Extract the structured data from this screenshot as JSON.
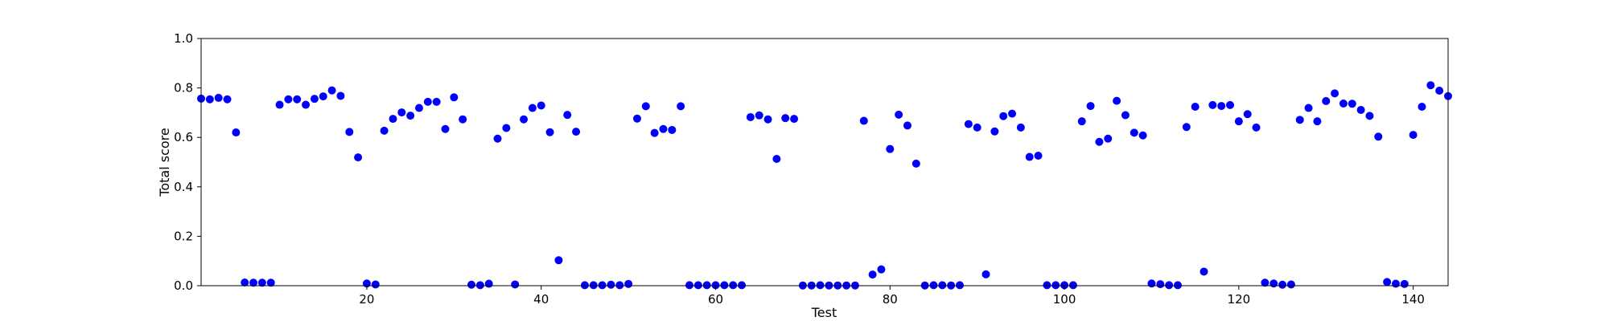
{
  "chart_data": {
    "type": "scatter",
    "title": "",
    "xlabel": "Test",
    "ylabel": "Total score",
    "xlim": [
      1,
      144
    ],
    "ylim": [
      0.0,
      1.0
    ],
    "x_ticks": [
      20,
      40,
      60,
      80,
      100,
      120,
      140
    ],
    "y_ticks": [
      0.0,
      0.2,
      0.4,
      0.6,
      0.8,
      1.0
    ],
    "x_tick_labels": [
      "20",
      "40",
      "60",
      "80",
      "100",
      "120",
      "140"
    ],
    "y_tick_labels": [
      "0.0",
      "0.2",
      "0.4",
      "0.6",
      "0.8",
      "1.0"
    ],
    "grid": false,
    "legend": "none",
    "marker_color": "#0000ff",
    "series": [
      {
        "x": [
          1,
          2,
          3,
          4,
          5,
          6,
          7,
          8,
          9,
          10,
          11,
          12,
          13,
          14,
          15,
          16,
          17,
          18,
          19,
          20,
          21,
          22,
          23,
          24,
          25,
          26,
          27,
          28,
          29,
          30,
          31,
          32,
          33,
          34,
          35,
          36,
          37,
          38,
          39,
          40,
          41,
          42,
          43,
          44,
          45,
          46,
          47,
          48,
          49,
          50,
          51,
          52,
          53,
          54,
          55,
          56,
          57,
          58,
          59,
          60,
          61,
          62,
          63,
          64,
          65,
          66,
          67,
          68,
          69,
          70,
          71,
          72,
          73,
          74,
          75,
          76,
          77,
          78,
          79,
          80,
          81,
          82,
          83,
          84,
          85,
          86,
          87,
          88,
          89,
          90,
          91,
          92,
          93,
          94,
          95,
          96,
          97,
          98,
          99,
          100,
          101,
          102,
          103,
          104,
          105,
          106,
          107,
          108,
          109,
          110,
          111,
          112,
          113,
          114,
          115,
          116,
          117,
          118,
          119,
          120,
          121,
          122,
          123,
          124,
          125,
          126,
          127,
          128,
          129,
          130,
          131,
          132,
          133,
          134,
          135,
          136,
          137,
          138,
          139,
          140,
          141,
          142,
          143,
          144
        ],
        "y": [
          0.757,
          0.754,
          0.76,
          0.754,
          0.62,
          0.013,
          0.012,
          0.012,
          0.012,
          0.732,
          0.754,
          0.754,
          0.732,
          0.756,
          0.766,
          0.79,
          0.768,
          0.622,
          0.519,
          0.009,
          0.005,
          0.627,
          0.675,
          0.701,
          0.688,
          0.719,
          0.744,
          0.744,
          0.634,
          0.762,
          0.673,
          0.004,
          0.002,
          0.008,
          0.595,
          0.638,
          0.005,
          0.673,
          0.719,
          0.729,
          0.621,
          0.103,
          0.691,
          0.623,
          0.002,
          0.002,
          0.002,
          0.004,
          0.002,
          0.007,
          0.676,
          0.726,
          0.618,
          0.634,
          0.63,
          0.726,
          0.002,
          0.002,
          0.002,
          0.002,
          0.002,
          0.002,
          0.002,
          0.682,
          0.689,
          0.673,
          0.513,
          0.678,
          0.675,
          0.001,
          0.001,
          0.002,
          0.001,
          0.001,
          0.001,
          0.001,
          0.667,
          0.045,
          0.066,
          0.553,
          0.692,
          0.648,
          0.494,
          0.001,
          0.002,
          0.002,
          0.001,
          0.002,
          0.654,
          0.64,
          0.046,
          0.624,
          0.686,
          0.696,
          0.64,
          0.521,
          0.526,
          0.002,
          0.002,
          0.002,
          0.002,
          0.665,
          0.727,
          0.582,
          0.595,
          0.748,
          0.69,
          0.619,
          0.608,
          0.009,
          0.006,
          0.002,
          0.002,
          0.642,
          0.724,
          0.057,
          0.731,
          0.727,
          0.731,
          0.665,
          0.694,
          0.64,
          0.012,
          0.009,
          0.004,
          0.005,
          0.671,
          0.719,
          0.665,
          0.747,
          0.778,
          0.737,
          0.736,
          0.711,
          0.687,
          0.603,
          0.015,
          0.008,
          0.007,
          0.61,
          0.724,
          0.811,
          0.789,
          0.767
        ]
      }
    ]
  }
}
